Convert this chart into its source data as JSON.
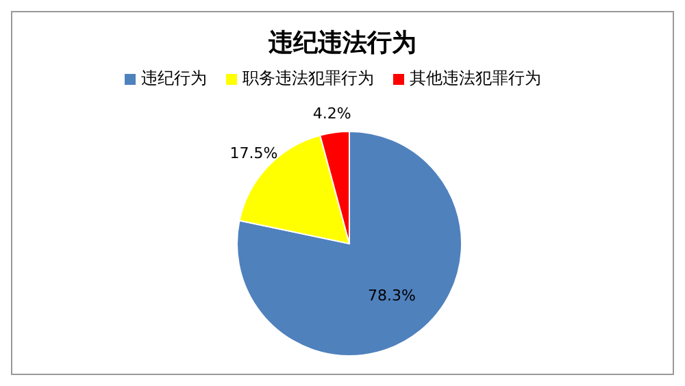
{
  "chart_data": {
    "type": "pie",
    "title": "违纪违法行为",
    "categories": [
      "违纪行为",
      "职务违法犯罪行为",
      "其他违法犯罪行为"
    ],
    "values": [
      78.3,
      17.5,
      4.2
    ],
    "colors": [
      "#4f81bd",
      "#ffff00",
      "#ff0000"
    ],
    "value_labels": [
      "78.3%",
      "17.5%",
      "4.2%"
    ],
    "legend": "top"
  }
}
